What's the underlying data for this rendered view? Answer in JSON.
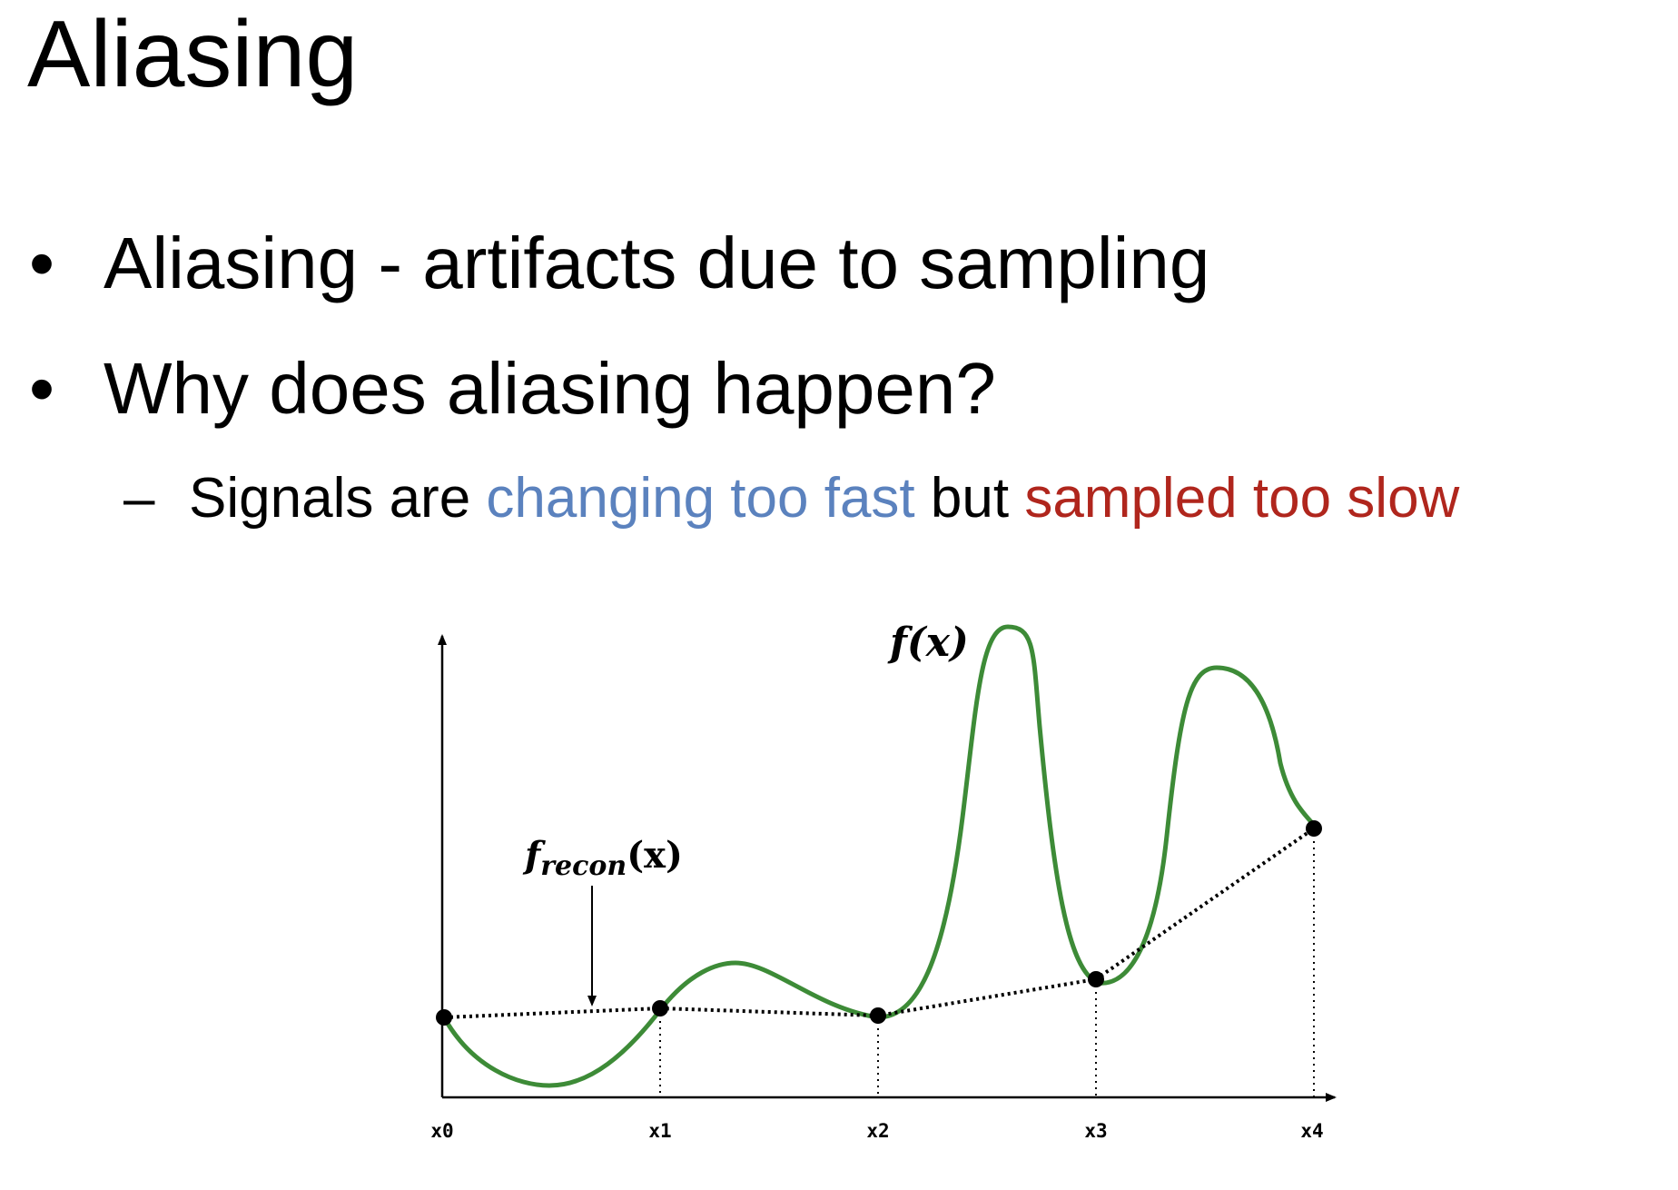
{
  "slide": {
    "title": "Aliasing",
    "bullets": [
      {
        "mark": "•",
        "text": "Aliasing - artifacts due to sampling"
      },
      {
        "mark": "•",
        "text": "Why does aliasing happen?"
      }
    ],
    "sub_bullet": {
      "dash": "–",
      "part1": "Signals are ",
      "part2": "changing too fast",
      "part3": " but ",
      "part4": "sampled too slow"
    },
    "colors": {
      "highlight_blue": "#5b82be",
      "highlight_red": "#b0261d",
      "signal_green": "#3d8b37"
    }
  },
  "diagram": {
    "signal_label": "f(x)",
    "recon_label_base": "f",
    "recon_label_sub": "recon",
    "recon_label_arg": "(x)",
    "tick_labels": [
      "x0",
      "x1",
      "x2",
      "x3",
      "x4"
    ]
  }
}
